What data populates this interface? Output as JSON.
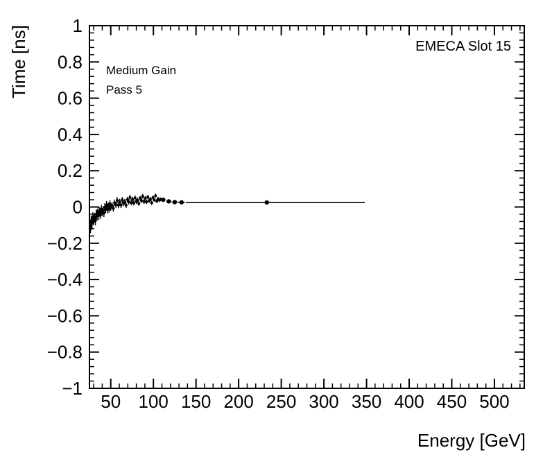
{
  "figure": {
    "background": "#ffffff",
    "foreground": "#000000"
  },
  "chart_data": {
    "type": "scatter",
    "title": "",
    "xlabel": "Energy [GeV]",
    "ylabel": "Time [ns]",
    "xlim": [
      25,
      535
    ],
    "ylim": [
      -1,
      1
    ],
    "grid": false,
    "legend": "none",
    "marker_style": "filled-circle",
    "marker_color": "#000000",
    "annotations": [
      {
        "text": "EMECA Slot 15",
        "position": "top-right"
      },
      {
        "text": "Medium Gain",
        "position": "upper-left"
      },
      {
        "text": "Pass 5",
        "position": "upper-left-below"
      }
    ],
    "x_ticks": {
      "values": [
        50,
        100,
        150,
        200,
        250,
        300,
        350,
        400,
        450,
        500
      ],
      "labels": [
        "50",
        "100",
        "150",
        "200",
        "250",
        "300",
        "350",
        "400",
        "450",
        "500"
      ]
    },
    "y_ticks": {
      "values": [
        1,
        0.8,
        0.6,
        0.4,
        0.2,
        0,
        -0.2,
        -0.4,
        -0.6,
        -0.8,
        -1
      ],
      "labels": [
        "1",
        "0.8",
        "0.6",
        "0.4",
        "0.2",
        "0",
        "−0.2",
        "−0.4",
        "−0.6",
        "−0.8",
        "−1"
      ]
    },
    "x_minor_step": 10,
    "y_minor_step": 0.04,
    "series": [
      {
        "name": "medium-gain-timing",
        "color": "#000000",
        "cluster_marker_radius": 2,
        "outlier_marker_radius": 3.2,
        "cluster_x_err": 0.8,
        "cluster_points": [
          [
            26.3,
            -0.112,
            0.032
          ],
          [
            26.8,
            -0.096,
            0.031
          ],
          [
            27,
            -0.077,
            0.03
          ],
          [
            28,
            -0.09,
            0.03
          ],
          [
            29,
            -0.057,
            0.028
          ],
          [
            30,
            -0.073,
            0.028
          ],
          [
            31,
            -0.059,
            0.027
          ],
          [
            32,
            -0.074,
            0.027
          ],
          [
            33,
            -0.04,
            0.026
          ],
          [
            34,
            -0.049,
            0.026
          ],
          [
            35,
            -0.022,
            0.025
          ],
          [
            36,
            -0.047,
            0.025
          ],
          [
            37,
            -0.026,
            0.024
          ],
          [
            38,
            -0.042,
            0.024
          ],
          [
            39,
            -0.011,
            0.023
          ],
          [
            40,
            -0.029,
            0.023
          ],
          [
            41,
            -0.017,
            0.022
          ],
          [
            42,
            -0.034,
            0.022
          ],
          [
            43,
            -0.002,
            0.022
          ],
          [
            44,
            -0.013,
            0.021
          ],
          [
            45,
            0.012,
            0.021
          ],
          [
            46,
            -0.014,
            0.021
          ],
          [
            47,
            0.005,
            0.02
          ],
          [
            48,
            -0.012,
            0.02
          ],
          [
            49,
            0.017,
            0.02
          ],
          [
            50,
            -0.002,
            0.019
          ],
          [
            51.5,
            0.009,
            0.019
          ],
          [
            53,
            -0.008,
            0.019
          ],
          [
            54.5,
            0.023,
            0.018
          ],
          [
            56,
            0.012,
            0.018
          ],
          [
            57.5,
            0.037,
            0.018
          ],
          [
            59,
            0.01,
            0.017
          ],
          [
            60.5,
            0.029,
            0.017
          ],
          [
            62,
            0.011,
            0.017
          ],
          [
            63.5,
            0.039,
            0.016
          ],
          [
            65,
            0.02,
            0.016
          ],
          [
            66.5,
            0.029,
            0.016
          ],
          [
            68,
            0.01,
            0.016
          ],
          [
            69.5,
            0.041,
            0.015
          ],
          [
            71,
            0.028,
            0.015
          ],
          [
            72.5,
            0.052,
            0.015
          ],
          [
            74,
            0.024,
            0.015
          ],
          [
            75.5,
            0.042,
            0.014
          ],
          [
            77,
            0.022,
            0.014
          ],
          [
            78.5,
            0.05,
            0.014
          ],
          [
            80,
            0.03,
            0.014
          ],
          [
            81.5,
            0.038,
            0.014
          ],
          [
            83,
            0.019,
            0.013
          ],
          [
            84.5,
            0.049,
            0.013
          ],
          [
            86,
            0.035,
            0.013
          ],
          [
            87.5,
            0.059,
            0.013
          ],
          [
            89,
            0.03,
            0.013
          ],
          [
            90.5,
            0.048,
            0.012
          ],
          [
            92,
            0.028,
            0.012
          ],
          [
            93.5,
            0.055,
            0.012
          ],
          [
            95,
            0.035,
            0.012
          ],
          [
            96.5,
            0.043,
            0.012
          ],
          [
            98,
            0.023,
            0.012
          ],
          [
            99.5,
            0.052,
            0.011
          ],
          [
            101,
            0.039,
            0.011
          ],
          [
            102.5,
            0.062,
            0.011
          ],
          [
            104,
            0.033,
            0.011
          ],
          [
            105.5,
            0.045,
            0.011
          ],
          [
            107,
            0.038,
            0.01
          ],
          [
            108.5,
            0.042,
            0.01
          ]
        ],
        "outlier_points": [
          [
            111.5,
            0.04,
            0.01,
            2.5,
            2.5
          ],
          [
            118,
            0.031,
            0.009,
            3,
            3
          ],
          [
            125,
            0.027,
            0.008,
            3.5,
            3.5
          ],
          [
            133,
            0.026,
            0.008,
            4,
            4
          ],
          [
            233,
            0.025,
            0.006,
            95,
            115
          ]
        ]
      }
    ]
  }
}
